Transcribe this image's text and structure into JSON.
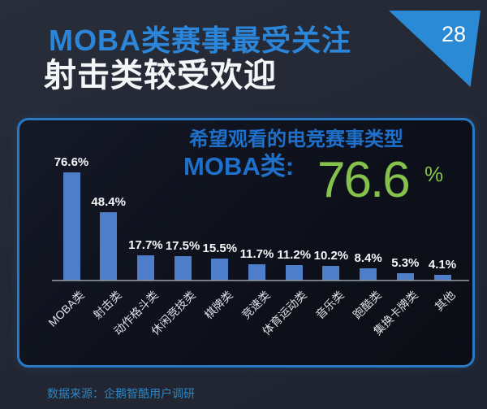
{
  "header": {
    "title_line1": "MOBA类赛事最受关注",
    "title_line2": "射击类较受欢迎",
    "page_number": "28"
  },
  "panel": {
    "chart_title": "希望观看的电竞赛事类型",
    "highlight_label": "MOBA类:",
    "highlight_value": "76.6",
    "highlight_unit": "%"
  },
  "footer": {
    "source": "数据来源：企鹅智酷用户调研"
  },
  "colors": {
    "accent_blue": "#2b86d9",
    "panel_border_blue": "#2879c5",
    "chart_title_blue": "#1e70ca",
    "highlight_green": "#85c24c",
    "bar_blue": "#4e7dca",
    "page_triangle_blue": "#2b8ad6",
    "source_blue": "#2d85c2"
  },
  "chart_data": {
    "type": "bar",
    "title": "希望观看的电竞赛事类型",
    "categories": [
      "MOBA类",
      "射击类",
      "动作格斗类",
      "休闲竞技类",
      "棋牌类",
      "竞速类",
      "体育运动类",
      "音乐类",
      "跑酷类",
      "集换卡牌类",
      "其他"
    ],
    "values": [
      76.6,
      48.4,
      17.7,
      17.5,
      15.5,
      11.7,
      11.2,
      10.2,
      8.4,
      5.3,
      4.1
    ],
    "value_suffix": "%",
    "xlabel": "",
    "ylabel": "",
    "ylim": [
      0,
      80
    ],
    "grid": false,
    "legend": false,
    "bar_color": "#4e7dca",
    "value_label_color": "#f5f6f8"
  }
}
